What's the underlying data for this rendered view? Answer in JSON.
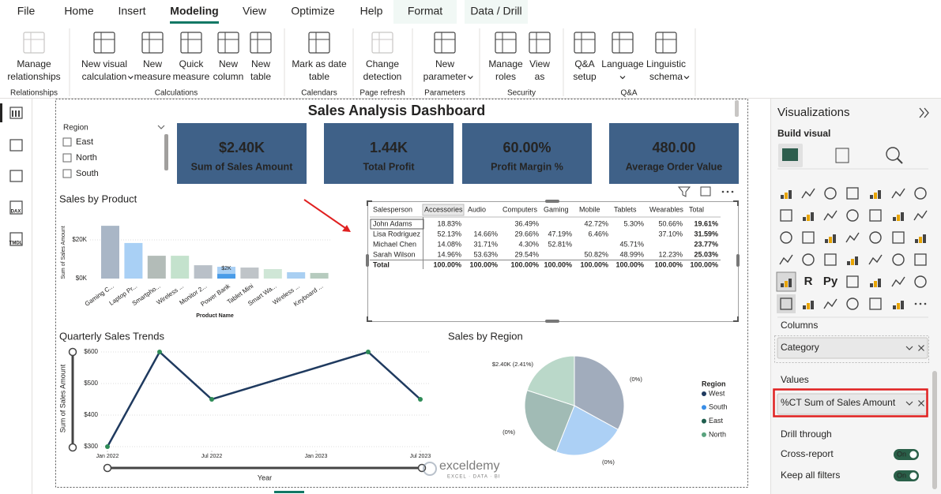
{
  "ribbon": {
    "tabs": [
      "File",
      "Home",
      "Insert",
      "Modeling",
      "View",
      "Optimize",
      "Help",
      "Format",
      "Data / Drill"
    ],
    "active_tab": 3,
    "accent_tabs": [
      7,
      8
    ],
    "groups": [
      {
        "name": "Relationships",
        "buttons": [
          {
            "lines": [
              "Manage",
              "relationships"
            ],
            "disabled": true
          }
        ]
      },
      {
        "name": "Calculations",
        "buttons": [
          {
            "lines": [
              "New visual",
              "calculation"
            ],
            "menu": true
          },
          {
            "lines": [
              "New",
              "measure"
            ]
          },
          {
            "lines": [
              "Quick",
              "measure"
            ]
          },
          {
            "lines": [
              "New",
              "column"
            ]
          },
          {
            "lines": [
              "New",
              "table"
            ]
          }
        ]
      },
      {
        "name": "Calendars",
        "buttons": [
          {
            "lines": [
              "Mark as date",
              "table"
            ]
          }
        ]
      },
      {
        "name": "Page refresh",
        "buttons": [
          {
            "lines": [
              "Change",
              "detection"
            ],
            "disabled": true
          }
        ]
      },
      {
        "name": "Parameters",
        "buttons": [
          {
            "lines": [
              "New",
              "parameter"
            ],
            "menu": true
          }
        ]
      },
      {
        "name": "Security",
        "buttons": [
          {
            "lines": [
              "Manage",
              "roles"
            ]
          },
          {
            "lines": [
              "View",
              "as"
            ]
          }
        ]
      },
      {
        "name": "Q&A",
        "buttons": [
          {
            "lines": [
              "Q&A",
              "setup"
            ]
          },
          {
            "lines": [
              "Language"
            ],
            "menu": true
          },
          {
            "lines": [
              "Linguistic",
              "schema"
            ],
            "menu": true
          }
        ]
      }
    ]
  },
  "nav": {
    "labels": [
      "DAX",
      "TMDL"
    ]
  },
  "dashboard": {
    "title": "Sales Analysis Dashboard",
    "slicer": {
      "title": "Region",
      "items": [
        "East",
        "North",
        "South"
      ]
    },
    "cards": [
      {
        "value": "$2.40K",
        "label": "Sum of Sales Amount"
      },
      {
        "value": "1.44K",
        "label": "Total Profit"
      },
      {
        "value": "60.00%",
        "label": "Profit Margin %"
      },
      {
        "value": "480.00",
        "label": "Average Order Value"
      }
    ],
    "product_chart": {
      "type": "bar",
      "title": "Sales by Product",
      "y_label": "Sum of Sales Amount",
      "x_label": "Product Name",
      "categories": [
        "Gaming C...",
        "Laptop Pr...",
        "Smartpho...",
        "Wireless ...",
        "Monitor 2...",
        "Power Bank",
        "Tablet Mini",
        "Smart Wa...",
        "Wireless ...",
        "Keyboard ..."
      ],
      "values": [
        27.3,
        18.4,
        11.8,
        11.8,
        6.9,
        6.1,
        5.7,
        4.9,
        3.3,
        2.9
      ],
      "colors": [
        "#a9b6c6",
        "#a9d0f5",
        "#b3bcb8",
        "#c4e2cd",
        "#b9c0c8",
        "#a9d0f5",
        "#bfc4c8",
        "#cfe6d6",
        "#a9cff2",
        "#b6cbbe"
      ],
      "highlight": {
        "index": 5,
        "value": 2.4,
        "label": "$2K",
        "color": "#4a9ce8"
      },
      "ylim": [
        0,
        30
      ],
      "yticks": [
        {
          "value": 0,
          "label": "$0K"
        },
        {
          "value": 20,
          "label": "$20K"
        }
      ]
    },
    "matrix": {
      "columns": [
        "Salesperson",
        "Accessories",
        "Audio",
        "Computers",
        "Gaming",
        "Mobile",
        "Tablets",
        "Wearables",
        "Total"
      ],
      "rows": [
        [
          "John Adams",
          "18.83%",
          null,
          "36.49%",
          null,
          "42.72%",
          "5.30%",
          "50.66%",
          "19.61%"
        ],
        [
          "Lisa Rodriguez",
          "52.13%",
          "14.66%",
          "29.66%",
          "47.19%",
          "6.46%",
          null,
          "37.10%",
          "31.59%"
        ],
        [
          "Michael Chen",
          "14.08%",
          "31.71%",
          "4.30%",
          "52.81%",
          null,
          "45.71%",
          null,
          "23.77%"
        ],
        [
          "Sarah Wilson",
          "14.96%",
          "53.63%",
          "29.54%",
          null,
          "50.82%",
          "48.99%",
          "12.23%",
          "25.03%"
        ],
        [
          "Total",
          "100.00%",
          "100.00%",
          "100.00%",
          "100.00%",
          "100.00%",
          "100.00%",
          "100.00%",
          "100.00%"
        ]
      ]
    },
    "trend_chart": {
      "type": "line",
      "title": "Quarterly Sales Trends",
      "y_label": "Sum of Sales Amount",
      "x_label": "Year",
      "x": [
        "2022-01",
        "2022-04",
        "2022-07",
        "2023-04",
        "2023-07"
      ],
      "values": [
        300,
        600,
        450,
        600,
        450
      ],
      "color": "#1f3a5f",
      "marker_color": "#2e8b57",
      "xlim": [
        "2022-01",
        "2023-07"
      ],
      "xticks": [
        {
          "value": "2022-01",
          "label": "Jan 2022"
        },
        {
          "value": "2022-07",
          "label": "Jul 2022"
        },
        {
          "value": "2023-01",
          "label": "Jan 2023"
        },
        {
          "value": "2023-07",
          "label": "Jul 2023"
        }
      ],
      "ylim": [
        300,
        600
      ],
      "yticks": [
        {
          "value": 300,
          "label": "$300"
        },
        {
          "value": 400,
          "label": "$400"
        },
        {
          "value": 500,
          "label": "$500"
        },
        {
          "value": 600,
          "label": "$600"
        }
      ]
    },
    "region_chart": {
      "type": "pie",
      "title": "Sales by Region",
      "legend_title": "Region",
      "categories": [
        "West",
        "South",
        "East",
        "North"
      ],
      "values": [
        33,
        23,
        24,
        20
      ],
      "colors": [
        "#1f3a5f",
        "#3a8ee6",
        "#1f5e4e",
        "#5aa37e"
      ],
      "annotations": [
        "(0%)",
        "(0%)",
        "(0%)",
        "$2.40K (2.41%)"
      ]
    }
  },
  "pane": {
    "title": "Visualizations",
    "subtitle": "Build visual",
    "script_visuals": [
      "R",
      "Py"
    ],
    "wells": [
      {
        "title": "Columns",
        "field": "Category"
      },
      {
        "title": "Values",
        "field": "%CT Sum of Sales Amount"
      }
    ],
    "drill": {
      "title": "Drill through",
      "toggles": [
        {
          "label": "Cross-report",
          "state": "On"
        },
        {
          "label": "Keep all filters",
          "state": "On"
        }
      ]
    }
  },
  "watermark": {
    "name": "exceldemy",
    "tagline": "EXCEL · DATA · BI"
  }
}
